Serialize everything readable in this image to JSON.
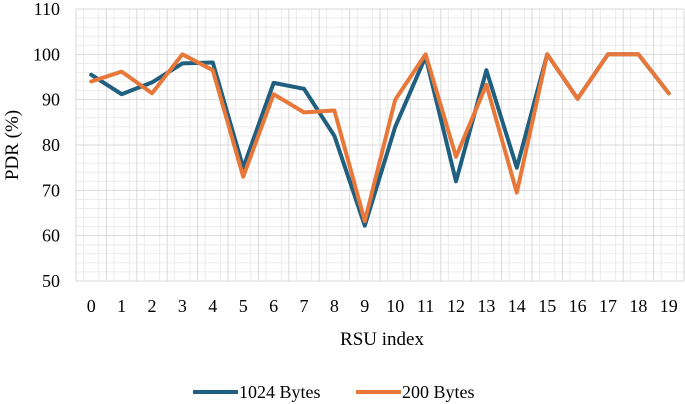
{
  "chart_data": {
    "type": "line",
    "title": "",
    "xlabel": "RSU index",
    "ylabel": "PDR (%)",
    "categories": [
      "0",
      "1",
      "2",
      "3",
      "4",
      "5",
      "6",
      "7",
      "8",
      "9",
      "10",
      "11",
      "12",
      "13",
      "14",
      "15",
      "16",
      "17",
      "18",
      "19"
    ],
    "ylim": [
      50,
      110
    ],
    "yticks": [
      50,
      60,
      70,
      80,
      90,
      100,
      110
    ],
    "grid": true,
    "legend_position": "bottom",
    "series": [
      {
        "name": "1024 Bytes",
        "color": "#1f5f7f",
        "values": [
          95.5,
          91.2,
          93.8,
          98.0,
          98.2,
          75.0,
          93.7,
          92.4,
          82.0,
          62.2,
          84.0,
          99.5,
          72.0,
          96.5,
          75.0,
          100,
          90.2,
          100,
          100,
          91.4
        ]
      },
      {
        "name": "200 Bytes",
        "color": "#e8773a",
        "values": [
          94.0,
          96.2,
          91.4,
          100,
          96.5,
          73.0,
          91.2,
          87.2,
          87.6,
          63.2,
          90.0,
          100,
          77.4,
          93.3,
          69.5,
          100,
          90.2,
          100,
          100,
          91.4
        ]
      }
    ]
  }
}
